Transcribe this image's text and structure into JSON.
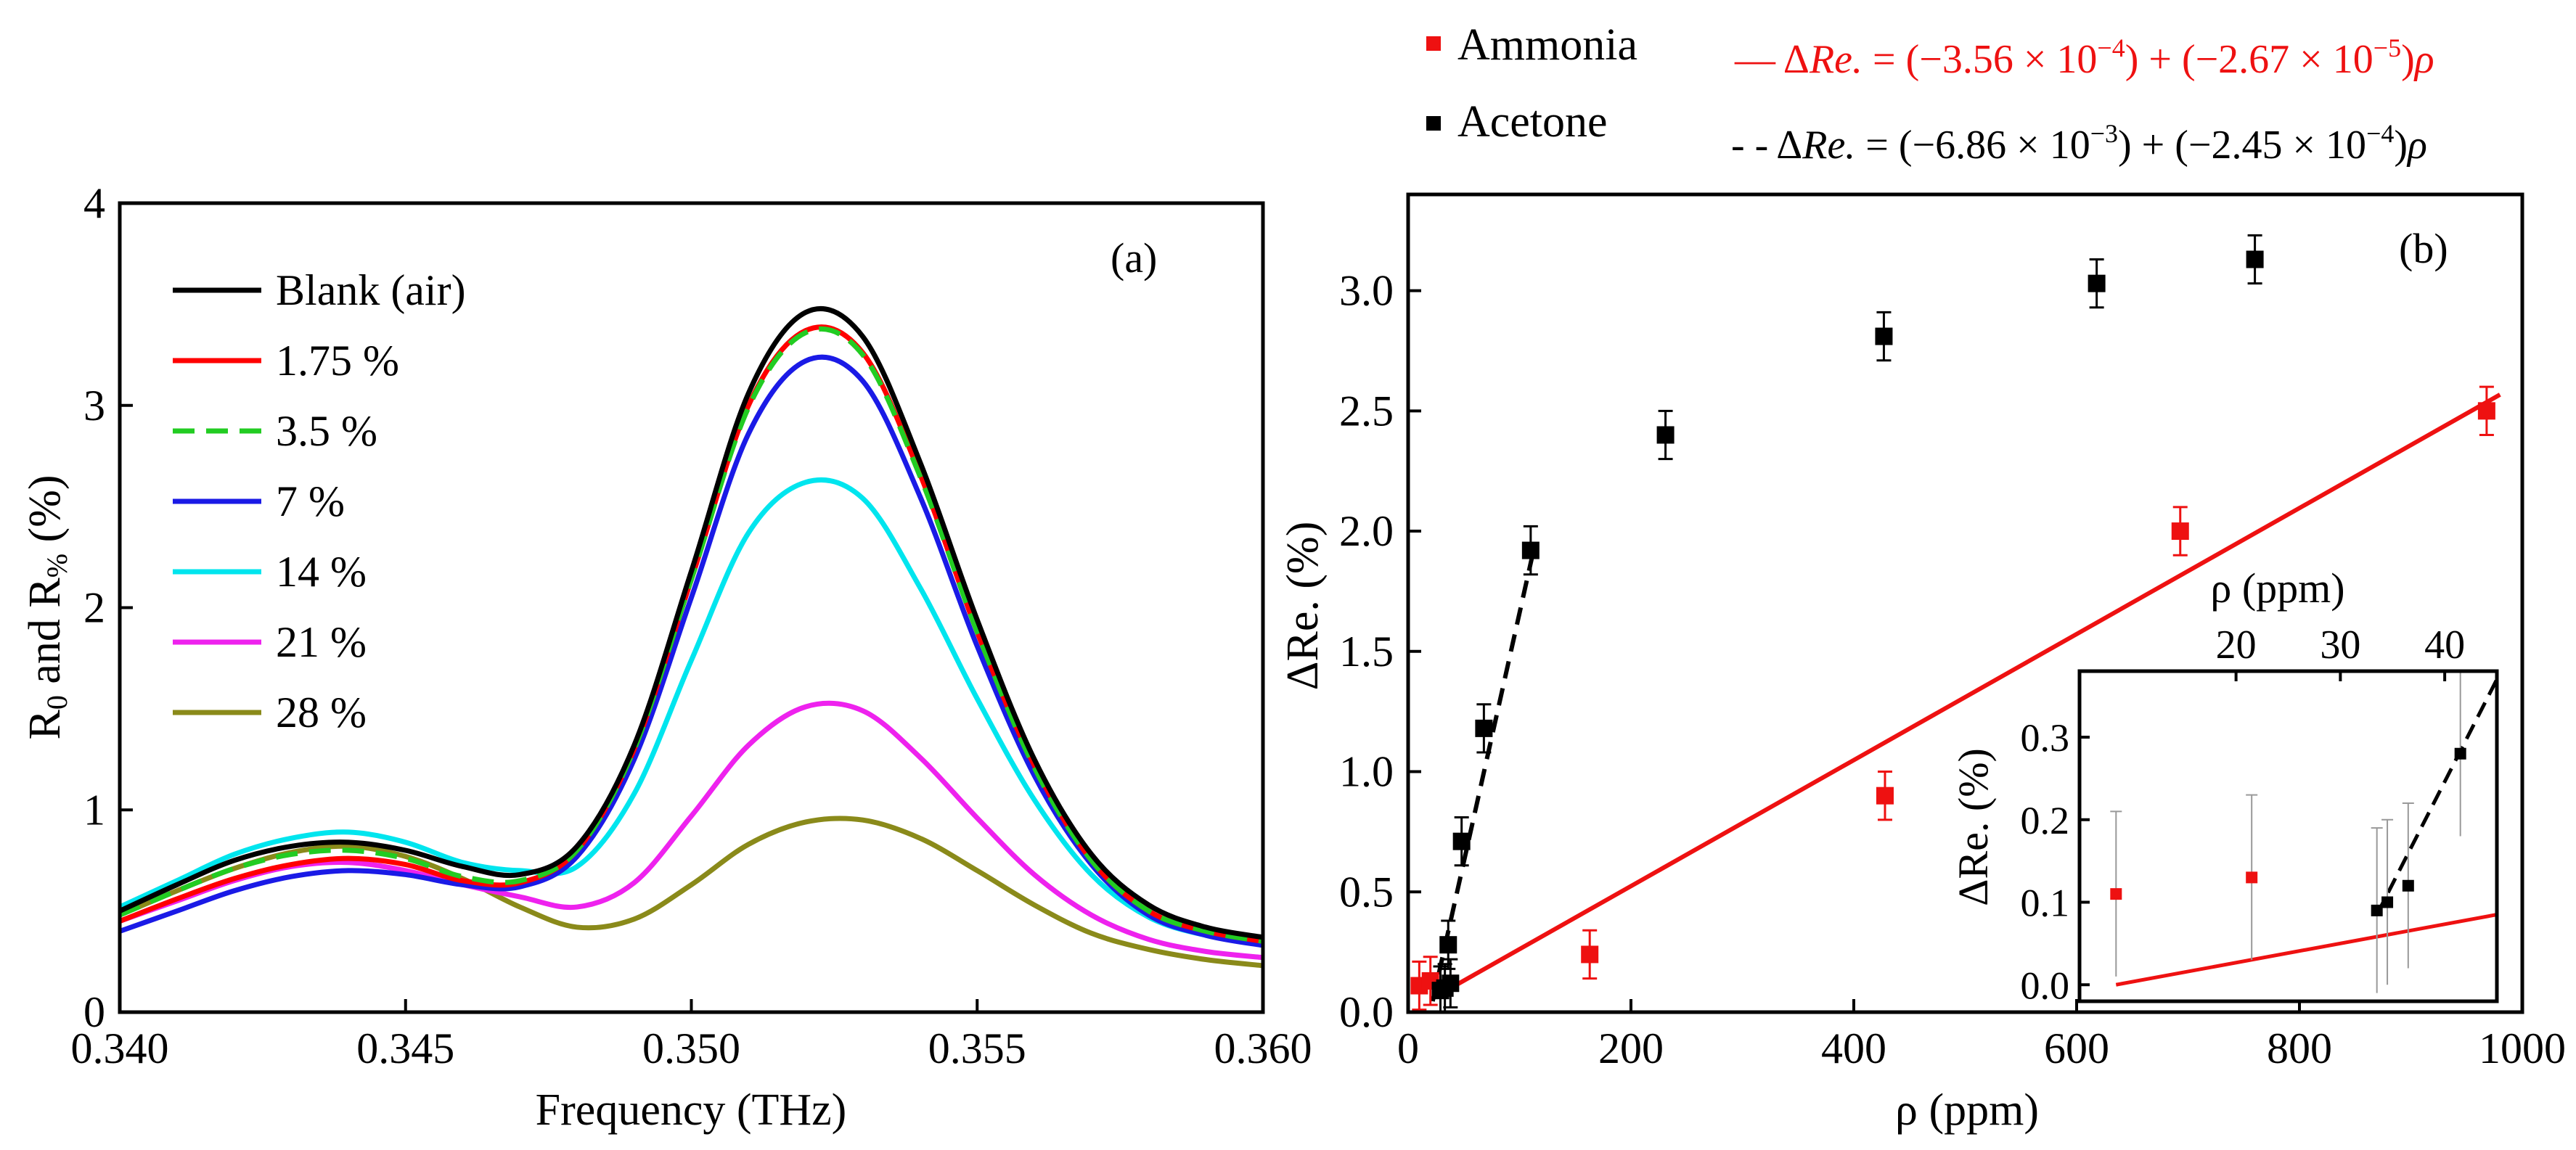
{
  "chart_data": [
    {
      "panel": "a",
      "type": "line",
      "panel_label": "(a)",
      "xlabel": "Frequency (THz)",
      "ylabel": "R0 and R% (%)",
      "ylabel_parts": [
        "R",
        "0",
        " and R",
        "%",
        " (%)"
      ],
      "xlim": [
        0.34,
        0.36
      ],
      "ylim": [
        0,
        4
      ],
      "xticks": [
        0.34,
        0.345,
        0.35,
        0.355,
        0.36
      ],
      "xtick_labels": [
        "0.340",
        "0.345",
        "0.350",
        "0.355",
        "0.360"
      ],
      "yticks": [
        0,
        1,
        2,
        3,
        4
      ],
      "ytick_labels": [
        "0",
        "1",
        "2",
        "3",
        "4"
      ],
      "legend_position": "top-left",
      "x": [
        0.34,
        0.341,
        0.342,
        0.343,
        0.344,
        0.345,
        0.346,
        0.347,
        0.348,
        0.349,
        0.35,
        0.351,
        0.352,
        0.353,
        0.354,
        0.355,
        0.356,
        0.357,
        0.358,
        0.359,
        0.36
      ],
      "series": [
        {
          "name": "Blank (air)",
          "color": "#000000",
          "dash": "solid",
          "values": [
            0.5,
            0.63,
            0.75,
            0.82,
            0.84,
            0.8,
            0.72,
            0.68,
            0.82,
            1.32,
            2.18,
            3.06,
            3.46,
            3.34,
            2.72,
            1.94,
            1.25,
            0.78,
            0.53,
            0.42,
            0.37
          ]
        },
        {
          "name": "1.75 %",
          "color": "#ff0000",
          "dash": "solid",
          "values": [
            0.45,
            0.56,
            0.66,
            0.73,
            0.76,
            0.73,
            0.65,
            0.64,
            0.8,
            1.3,
            2.14,
            3.0,
            3.37,
            3.26,
            2.66,
            1.88,
            1.22,
            0.75,
            0.5,
            0.4,
            0.35
          ]
        },
        {
          "name": "3.5 %",
          "color": "#22cc22",
          "dash": "dashed",
          "values": [
            0.48,
            0.6,
            0.71,
            0.78,
            0.8,
            0.76,
            0.67,
            0.65,
            0.8,
            1.3,
            2.14,
            2.99,
            3.36,
            3.25,
            2.65,
            1.88,
            1.21,
            0.75,
            0.5,
            0.4,
            0.35
          ]
        },
        {
          "name": "7 %",
          "color": "#1a1ae6",
          "dash": "solid",
          "values": [
            0.4,
            0.5,
            0.6,
            0.67,
            0.7,
            0.68,
            0.63,
            0.62,
            0.77,
            1.25,
            2.05,
            2.86,
            3.22,
            3.12,
            2.55,
            1.81,
            1.17,
            0.73,
            0.48,
            0.38,
            0.33
          ]
        },
        {
          "name": "14 %",
          "color": "#00e5ee",
          "dash": "solid",
          "values": [
            0.52,
            0.65,
            0.78,
            0.86,
            0.89,
            0.84,
            0.74,
            0.7,
            0.72,
            1.08,
            1.74,
            2.37,
            2.62,
            2.54,
            2.1,
            1.55,
            1.05,
            0.68,
            0.47,
            0.38,
            0.34
          ]
        },
        {
          "name": "21 %",
          "color": "#ee22ee",
          "dash": "solid",
          "values": [
            0.45,
            0.55,
            0.65,
            0.72,
            0.74,
            0.7,
            0.63,
            0.57,
            0.52,
            0.64,
            0.97,
            1.32,
            1.51,
            1.49,
            1.26,
            0.96,
            0.68,
            0.48,
            0.36,
            0.3,
            0.27
          ]
        },
        {
          "name": "28 %",
          "color": "#8a8a1a",
          "dash": "solid",
          "values": [
            0.48,
            0.6,
            0.71,
            0.79,
            0.82,
            0.77,
            0.66,
            0.52,
            0.42,
            0.46,
            0.63,
            0.83,
            0.94,
            0.95,
            0.86,
            0.7,
            0.53,
            0.39,
            0.31,
            0.26,
            0.23
          ]
        }
      ]
    },
    {
      "panel": "b",
      "type": "scatter",
      "panel_label": "(b)",
      "xlabel": "ρ (ppm)",
      "ylabel": "ΔRe. (%)",
      "xlim": [
        0,
        1000
      ],
      "ylim": [
        0,
        3.4
      ],
      "xticks": [
        0,
        200,
        400,
        600,
        800,
        1000
      ],
      "xtick_labels": [
        "0",
        "200",
        "400",
        "600",
        "800",
        "1000"
      ],
      "yticks": [
        0,
        0.5,
        1.0,
        1.5,
        2.0,
        2.5,
        3.0
      ],
      "ytick_labels": [
        "0.0",
        "0.5",
        "1.0",
        "1.5",
        "2.0",
        "2.5",
        "3.0"
      ],
      "legend_position": "top (above plot)",
      "series": [
        {
          "name": "Ammonia",
          "color": "#ee1111",
          "marker": "square",
          "points": [
            {
              "x": 10,
              "y": 0.11,
              "err": 0.1
            },
            {
              "x": 20,
              "y": 0.13,
              "err": 0.1
            },
            {
              "x": 163,
              "y": 0.24,
              "err": 0.1
            },
            {
              "x": 428,
              "y": 0.9,
              "err": 0.1
            },
            {
              "x": 693,
              "y": 2.0,
              "err": 0.1
            },
            {
              "x": 968,
              "y": 2.5,
              "err": 0.1
            }
          ]
        },
        {
          "name": "Acetone",
          "color": "#000000",
          "marker": "square",
          "points": [
            {
              "x": 29,
              "y": 0.09,
              "err": 0.1
            },
            {
              "x": 33,
              "y": 0.1,
              "err": 0.1
            },
            {
              "x": 38,
              "y": 0.12,
              "err": 0.1
            },
            {
              "x": 36,
              "y": 0.28,
              "err": 0.1
            },
            {
              "x": 48,
              "y": 0.71,
              "err": 0.1
            },
            {
              "x": 68,
              "y": 1.18,
              "err": 0.1
            },
            {
              "x": 110,
              "y": 1.92,
              "err": 0.1
            },
            {
              "x": 231,
              "y": 2.4,
              "err": 0.1
            },
            {
              "x": 427,
              "y": 2.81,
              "err": 0.1
            },
            {
              "x": 618,
              "y": 3.03,
              "err": 0.1
            },
            {
              "x": 760,
              "y": 3.13,
              "err": 0.1
            }
          ]
        }
      ],
      "fits": [
        {
          "label": "— ΔRe. = (−3.56 × 10⁻⁴) + (−2.67 × 10⁻⁵)ρ",
          "eq_prefix": "—  ",
          "eq_delta": "Δ",
          "eq_var": "Re.",
          "eq_mid": " = (−3.56 × 10",
          "eq_exp1": "−4",
          "eq_mid2": ") + (−2.67 × 10",
          "eq_exp2": "−5",
          "eq_end": ")",
          "eq_rho": "ρ",
          "color": "#ee1111",
          "dash": "solid",
          "intercept_pct": 0.0,
          "slope_pct_per_ppm": 0.00262,
          "x_range": [
            20,
            980
          ]
        },
        {
          "label": "-- ΔRe. = (−6.86 × 10⁻³) + (−2.45 × 10⁻⁴)ρ",
          "eq_prefix": "- -  ",
          "eq_delta": "Δ",
          "eq_var": "Re.",
          "eq_mid": " = (−6.86 × 10",
          "eq_exp1": "−3",
          "eq_mid2": ") + (−2.45 × 10",
          "eq_exp2": "−4",
          "eq_end": ")",
          "eq_rho": "ρ",
          "color": "#000000",
          "dash": "dashed",
          "intercept_pct": -0.41,
          "slope_pct_per_ppm": 0.0207,
          "x_range": [
            22,
            112
          ]
        }
      ],
      "inset": {
        "type": "scatter",
        "xlabel": "ρ (ppm)",
        "ylabel": "ΔRe. (%)",
        "xlim": [
          5,
          45
        ],
        "ylim": [
          -0.02,
          0.38
        ],
        "xticks": [
          20,
          30,
          40
        ],
        "xtick_labels": [
          "20",
          "30",
          "40"
        ],
        "yticks": [
          0.0,
          0.1,
          0.2,
          0.3
        ],
        "ytick_labels": [
          "0.0",
          "0.1",
          "0.2",
          "0.3"
        ],
        "series": [
          {
            "name": "Ammonia",
            "color": "#ee1111",
            "points": [
              {
                "x": 8.5,
                "y": 0.11,
                "err": 0.1
              },
              {
                "x": 21.5,
                "y": 0.13,
                "err": 0.1
              }
            ]
          },
          {
            "name": "Acetone",
            "color": "#000000",
            "points": [
              {
                "x": 33.5,
                "y": 0.09,
                "err": 0.1
              },
              {
                "x": 34.5,
                "y": 0.1,
                "err": 0.1
              },
              {
                "x": 36.5,
                "y": 0.12,
                "err": 0.1
              },
              {
                "x": 41.5,
                "y": 0.28,
                "err": 0.1
              }
            ]
          }
        ],
        "fits": [
          {
            "color": "#ee1111",
            "dash": "solid",
            "x_range": [
              8.5,
              45
            ],
            "y_range": [
              0.0,
              0.085
            ]
          },
          {
            "color": "#000000",
            "dash": "dashed",
            "x_range": [
              33.5,
              45
            ],
            "y_range": [
              0.085,
              0.37
            ]
          }
        ]
      }
    }
  ]
}
